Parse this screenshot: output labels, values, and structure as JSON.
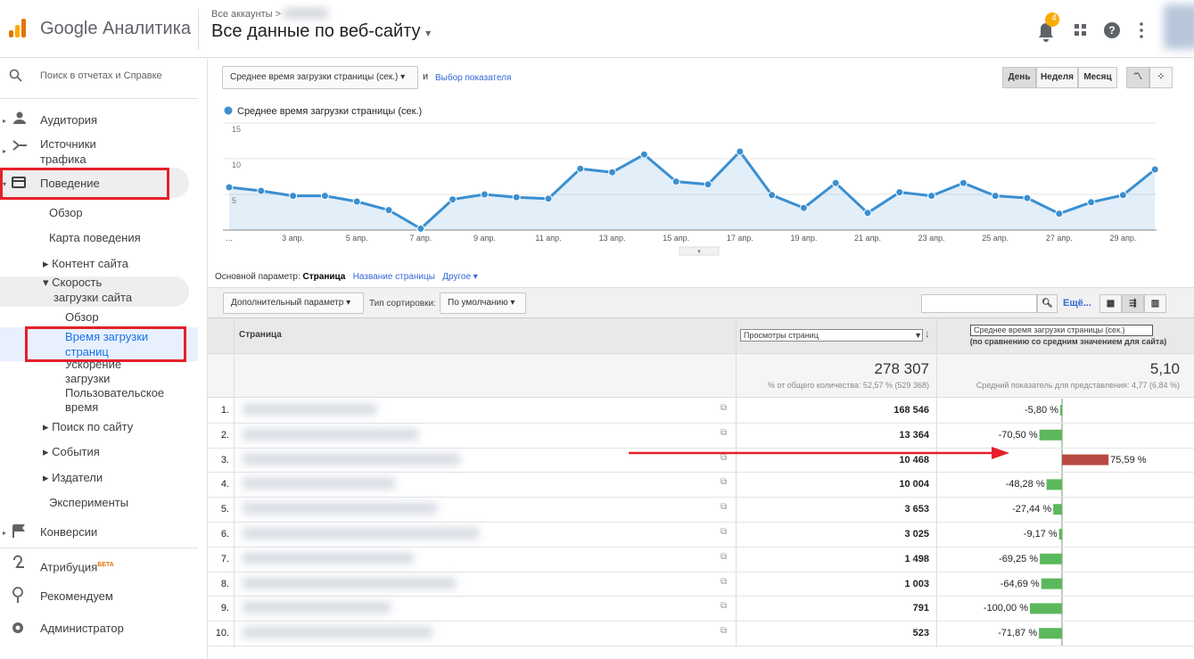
{
  "header": {
    "product": "Google Аналитика",
    "breadcrumb": "Все аккаунты >",
    "title": "Все данные по веб-сайту",
    "notifications": 4
  },
  "sidebar": {
    "search": "Поиск в отчетах и Справке",
    "items": [
      "Аудитория",
      "Источники трафика",
      "Поведение",
      "Обзор",
      "Карта поведения",
      "Контент сайта",
      "Скорость загрузки сайта",
      "Обзор",
      "Время загрузки страниц",
      "Ускорение загрузки",
      "Пользовательское время",
      "Поиск по сайту",
      "События",
      "Издатели",
      "Эксперименты",
      "Конверсии",
      "Атрибуция",
      "Рекомендуем",
      "Администратор"
    ],
    "beta": "БЕТА"
  },
  "chart_controls": {
    "metric": "Среднее время загрузки страницы (сек.)",
    "and": "и",
    "pick_metric": "Выбор показателя",
    "periods": [
      "День",
      "Неделя",
      "Месяц"
    ]
  },
  "chart_data": {
    "type": "line",
    "categories": [
      "...",
      null,
      "3 апр.",
      null,
      "5 апр.",
      null,
      "7 апр.",
      null,
      "9 апр.",
      null,
      "11 апр.",
      null,
      "13 апр.",
      null,
      "15 апр.",
      null,
      "17 апр.",
      null,
      "19 апр.",
      null,
      "21 апр.",
      null,
      "23 апр.",
      null,
      "25 апр.",
      null,
      "27 апр.",
      null,
      "29 апр.",
      null
    ],
    "series": [
      {
        "name": "Среднее время загрузки страницы (сек.)",
        "color": "#3a8fd0",
        "values": [
          6.0,
          5.5,
          4.8,
          4.8,
          4.0,
          2.8,
          0.2,
          4.3,
          5.0,
          4.6,
          4.4,
          8.6,
          8.1,
          10.6,
          6.8,
          6.4,
          11.0,
          4.9,
          3.1,
          6.6,
          2.4,
          5.3,
          4.8,
          6.6,
          4.8,
          4.5,
          2.3,
          3.9,
          4.9,
          8.5
        ]
      }
    ],
    "ylim": [
      0,
      15
    ],
    "yticks": [
      5,
      10,
      15
    ],
    "grid": true
  },
  "report": {
    "primary_label": "Основной параметр:",
    "primary": [
      "Страница",
      "Название страницы",
      "Другое"
    ],
    "secondary": "Дополнительный параметр",
    "sort_label": "Тип сортировки:",
    "sort": "По умолчанию",
    "more": "Ещё..."
  },
  "table": {
    "headers": {
      "page": "Страница",
      "pageviews": "Просмотры страниц",
      "comparison": "Среднее время загрузки страницы (сек.)",
      "comparison_note": "(по сравнению со средним значением для сайта)"
    },
    "totals": {
      "pageviews": "278 307",
      "pageviews_note": "% от общего количества: 52,57 % (529 368)",
      "comparison": "5,10",
      "comparison_note": "Средний показатель для представления: 4,77 (6,84 %)"
    },
    "rows": [
      {
        "rank": "1.",
        "pageviews": "168 546",
        "comparison": {
          "value": -5.8,
          "label": "-5,80 %"
        }
      },
      {
        "rank": "2.",
        "pageviews": "13 364",
        "comparison": {
          "value": -70.5,
          "label": "-70,50 %"
        }
      },
      {
        "rank": "3.",
        "pageviews": "10 468",
        "comparison": {
          "value": 75.59,
          "label": "75,59 %"
        }
      },
      {
        "rank": "4.",
        "pageviews": "10 004",
        "comparison": {
          "value": -48.28,
          "label": "-48,28 %"
        }
      },
      {
        "rank": "5.",
        "pageviews": "3 653",
        "comparison": {
          "value": -27.44,
          "label": "-27,44 %"
        }
      },
      {
        "rank": "6.",
        "pageviews": "3 025",
        "comparison": {
          "value": -9.17,
          "label": "-9,17 %"
        }
      },
      {
        "rank": "7.",
        "pageviews": "1 498",
        "comparison": {
          "value": -69.25,
          "label": "-69,25 %"
        }
      },
      {
        "rank": "8.",
        "pageviews": "1 003",
        "comparison": {
          "value": -64.69,
          "label": "-64,69 %"
        }
      },
      {
        "rank": "9.",
        "pageviews": "791",
        "comparison": {
          "value": -100.0,
          "label": "-100,00 %"
        }
      },
      {
        "rank": "10.",
        "pageviews": "523",
        "comparison": {
          "value": -71.87,
          "label": "-71,87 %"
        }
      }
    ]
  }
}
